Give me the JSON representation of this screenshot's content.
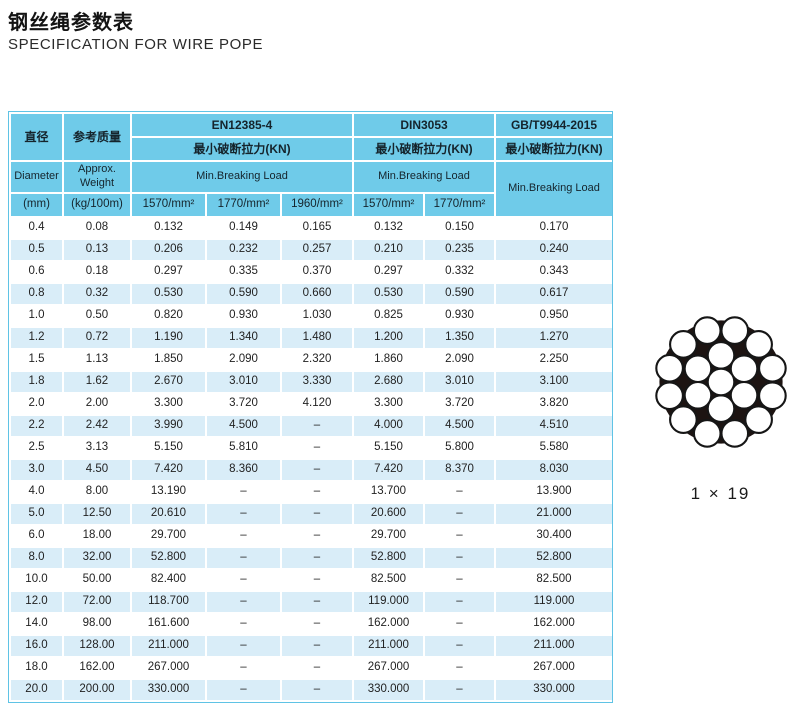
{
  "page": {
    "title_cn": "钢丝绳参数表",
    "title_en": "SPECIFICATION FOR WIRE POPE"
  },
  "colors": {
    "header_bg": "#6fcbe9",
    "row_alt_bg": "#d9edf8",
    "table_border": "#5fc3e5",
    "text": "#1d1d1f",
    "diagram_fill": "#1d1412"
  },
  "table": {
    "header": {
      "diameter_cn": "直径",
      "diameter_en": "Diameter",
      "diameter_unit": "(mm)",
      "weight_cn": "参考质量",
      "weight_en": "Approx. Weight",
      "weight_unit": "(kg/100m)",
      "en_standard": "EN12385-4",
      "din_standard": "DIN3053",
      "gb_standard": "GB/T9944-2015",
      "breaking_cn_en": "最小破断拉力(KN)",
      "breaking_cn_din": "最小破断拉力(KN)",
      "breaking_cn_gb": "最小破断拉力(KN)",
      "breaking_en_en": "Min.Breaking Load",
      "breaking_en_din": "Min.Breaking Load",
      "breaking_en_gb": "Min.Breaking Load",
      "en_grade_1570": "1570/mm²",
      "en_grade_1770": "1770/mm²",
      "en_grade_1960": "1960/mm²",
      "din_grade_1570": "1570/mm²",
      "din_grade_1770": "1770/mm²"
    },
    "rows": [
      [
        "0.4",
        "0.08",
        "0.132",
        "0.149",
        "0.165",
        "0.132",
        "0.150",
        "0.170"
      ],
      [
        "0.5",
        "0.13",
        "0.206",
        "0.232",
        "0.257",
        "0.210",
        "0.235",
        "0.240"
      ],
      [
        "0.6",
        "0.18",
        "0.297",
        "0.335",
        "0.370",
        "0.297",
        "0.332",
        "0.343"
      ],
      [
        "0.8",
        "0.32",
        "0.530",
        "0.590",
        "0.660",
        "0.530",
        "0.590",
        "0.617"
      ],
      [
        "1.0",
        "0.50",
        "0.820",
        "0.930",
        "1.030",
        "0.825",
        "0.930",
        "0.950"
      ],
      [
        "1.2",
        "0.72",
        "1.190",
        "1.340",
        "1.480",
        "1.200",
        "1.350",
        "1.270"
      ],
      [
        "1.5",
        "1.13",
        "1.850",
        "2.090",
        "2.320",
        "1.860",
        "2.090",
        "2.250"
      ],
      [
        "1.8",
        "1.62",
        "2.670",
        "3.010",
        "3.330",
        "2.680",
        "3.010",
        "3.100"
      ],
      [
        "2.0",
        "2.00",
        "3.300",
        "3.720",
        "4.120",
        "3.300",
        "3.720",
        "3.820"
      ],
      [
        "2.2",
        "2.42",
        "3.990",
        "4.500",
        "–",
        "4.000",
        "4.500",
        "4.510"
      ],
      [
        "2.5",
        "3.13",
        "5.150",
        "5.810",
        "–",
        "5.150",
        "5.800",
        "5.580"
      ],
      [
        "3.0",
        "4.50",
        "7.420",
        "8.360",
        "–",
        "7.420",
        "8.370",
        "8.030"
      ],
      [
        "4.0",
        "8.00",
        "13.190",
        "–",
        "–",
        "13.700",
        "–",
        "13.900"
      ],
      [
        "5.0",
        "12.50",
        "20.610",
        "–",
        "–",
        "20.600",
        "–",
        "21.000"
      ],
      [
        "6.0",
        "18.00",
        "29.700",
        "–",
        "–",
        "29.700",
        "–",
        "30.400"
      ],
      [
        "8.0",
        "32.00",
        "52.800",
        "–",
        "–",
        "52.800",
        "–",
        "52.800"
      ],
      [
        "10.0",
        "50.00",
        "82.400",
        "–",
        "–",
        "82.500",
        "–",
        "82.500"
      ],
      [
        "12.0",
        "72.00",
        "118.700",
        "–",
        "–",
        "119.000",
        "–",
        "119.000"
      ],
      [
        "14.0",
        "98.00",
        "161.600",
        "–",
        "–",
        "162.000",
        "–",
        "162.000"
      ],
      [
        "16.0",
        "128.00",
        "211.000",
        "–",
        "–",
        "211.000",
        "–",
        "211.000"
      ],
      [
        "18.0",
        "162.00",
        "267.000",
        "–",
        "–",
        "267.000",
        "–",
        "267.000"
      ],
      [
        "20.0",
        "200.00",
        "330.000",
        "–",
        "–",
        "330.000",
        "–",
        "330.000"
      ]
    ]
  },
  "diagram": {
    "label": "1 × 19",
    "type": "wire-rope-cross-section",
    "center_wires": 1,
    "inner_ring_wires": 6,
    "outer_ring_wires": 12
  }
}
